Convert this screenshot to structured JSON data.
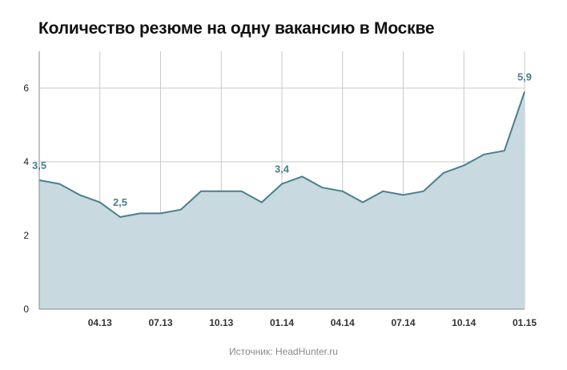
{
  "colors": {
    "line": "#4a7f8f",
    "fill": "#c8d9df",
    "grid": "#c9c9c9",
    "label": "#4a7f8f"
  },
  "chart_data": {
    "type": "area",
    "title": "Количество резюме на одну вакансию в Москве",
    "xlabel": "",
    "ylabel": "",
    "ylim": [
      0,
      7
    ],
    "yticks": [
      "0",
      "2",
      "4",
      "6"
    ],
    "grid": true,
    "x": [
      "01.13",
      "02.13",
      "03.13",
      "04.13",
      "05.13",
      "06.13",
      "07.13",
      "08.13",
      "09.13",
      "10.13",
      "11.13",
      "12.13",
      "01.14",
      "02.14",
      "03.14",
      "04.14",
      "05.14",
      "06.14",
      "07.14",
      "08.14",
      "09.14",
      "10.14",
      "11.14",
      "12.14",
      "01.15"
    ],
    "xtick_labels": [
      "04.13",
      "07.13",
      "10.13",
      "01.14",
      "04.14",
      "07.14",
      "10.14",
      "01.15"
    ],
    "values": [
      3.5,
      3.4,
      3.1,
      2.9,
      2.5,
      2.6,
      2.6,
      2.7,
      3.2,
      3.2,
      3.2,
      2.9,
      3.4,
      3.6,
      3.3,
      3.2,
      2.9,
      3.2,
      3.1,
      3.2,
      3.7,
      3.9,
      4.2,
      4.3,
      5.9
    ],
    "data_labels": [
      {
        "index": 0,
        "text": "3,5"
      },
      {
        "index": 4,
        "text": "2,5"
      },
      {
        "index": 12,
        "text": "3,4"
      },
      {
        "index": 24,
        "text": "5,9"
      }
    ]
  },
  "source": "Источник: HeadHunter.ru"
}
